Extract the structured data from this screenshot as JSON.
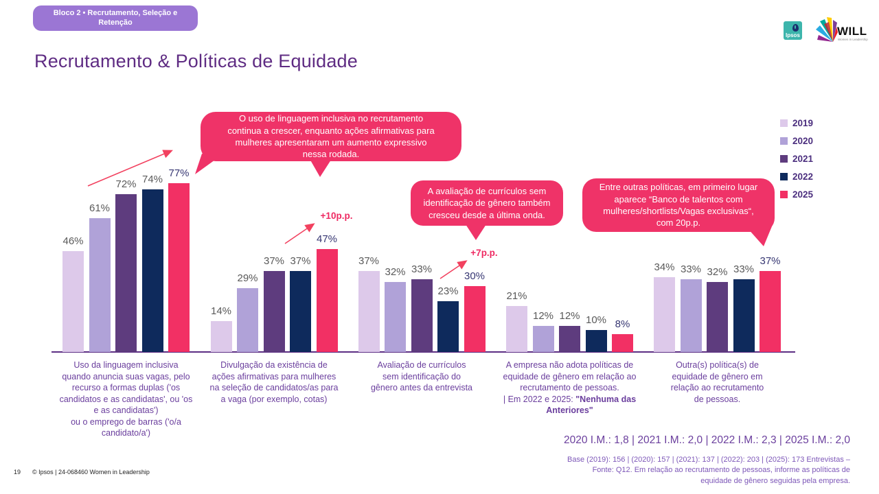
{
  "badge": {
    "label": "Bloco 2 • Recrutamento, Seleção e Retenção"
  },
  "title": "Recrutamento & Políticas de Equidade",
  "logos": {
    "ipsos": "Ipsos",
    "will": "WILL",
    "will_subtitle": "Women in Leadership"
  },
  "legend": [
    {
      "label": "2019",
      "color": "#ddc9ea"
    },
    {
      "label": "2020",
      "color": "#b0a2d8"
    },
    {
      "label": "2021",
      "color": "#5e3c7e"
    },
    {
      "label": "2022",
      "color": "#0e2a5c"
    },
    {
      "label": "2025",
      "color": "#f23064"
    }
  ],
  "chart_data": {
    "type": "bar",
    "title": "Recrutamento & Políticas de Equidade",
    "unit": "%",
    "ylim": [
      0,
      100
    ],
    "legend_position": "right",
    "categories": [
      "Uso da linguagem inclusiva\nquando anuncia suas vagas, pelo\nrecurso a formas duplas ('os\ncandidatos e as candidatas', ou 'os\ne as candidatas')\nou o emprego de barras ('o/a\ncandidato/a')",
      "Divulgação da existência de\nações afirmativas para mulheres\nna seleção de candidatos/as para\na vaga (por exemplo, cotas)",
      "Avaliação de currículos\nsem identificação do\ngênero antes da entrevista",
      "A empresa não adota políticas de\nequidade de gênero em relação ao\nrecrutamento de pessoas.\n| Em 2022 e 2025: ",
      "Outra(s) política(s) de\nequidade de gênero em\nrelação ao recrutamento\nde pessoas."
    ],
    "category4_bold": "\"Nenhuma das Anteriores\"",
    "series": [
      {
        "name": "2019",
        "color": "#ddc9ea",
        "label_color": "#595959",
        "values": [
          46,
          14,
          37,
          21,
          34
        ]
      },
      {
        "name": "2020",
        "color": "#b0a2d8",
        "label_color": "#595959",
        "values": [
          61,
          29,
          32,
          12,
          33
        ]
      },
      {
        "name": "2021",
        "color": "#5e3c7e",
        "label_color": "#595959",
        "values": [
          72,
          37,
          33,
          12,
          32
        ]
      },
      {
        "name": "2022",
        "color": "#0e2a5c",
        "label_color": "#595959",
        "values": [
          74,
          37,
          23,
          10,
          33
        ]
      },
      {
        "name": "2025",
        "color": "#f23064",
        "label_color": "#363672",
        "values": [
          77,
          47,
          30,
          8,
          37
        ]
      }
    ],
    "annotations": [
      {
        "text": "+10p.p.",
        "group": 1
      },
      {
        "text": "+7p.p.",
        "group": 2
      }
    ]
  },
  "callouts": [
    {
      "text": "O uso de linguagem inclusiva no recrutamento\ncontinua a crescer, enquanto ações afirmativas para\nmulheres apresentaram um aumento expressivo\nnessa rodada."
    },
    {
      "text": "A avaliação de currículos sem\nidentificação de gênero também\ncresceu desde a última onda."
    },
    {
      "text": "Entre outras políticas, em primeiro lugar\naparece “Banco de talentos com\nmulheres/shortlists/Vagas exclusivas“,\ncom 20p.p."
    }
  ],
  "im_line": "2020 I.M.: 1,8 | 2021 I.M.: 2,0 | 2022 I.M.: 2,3 | 2025 I.M.: 2,0",
  "base_note": "Base (2019): 156 | (2020): 157 | (2021): 137 | (2022): 203  | (2025): 173 Entrevistas –\nFonte: Q12. Em relação ao recrutamento de pessoas, informe as políticas de\nequidade de gênero seguidas pela empresa.",
  "footer": {
    "page": "19",
    "copyright": "© Ipsos | 24-068460 Women in Leadership"
  }
}
